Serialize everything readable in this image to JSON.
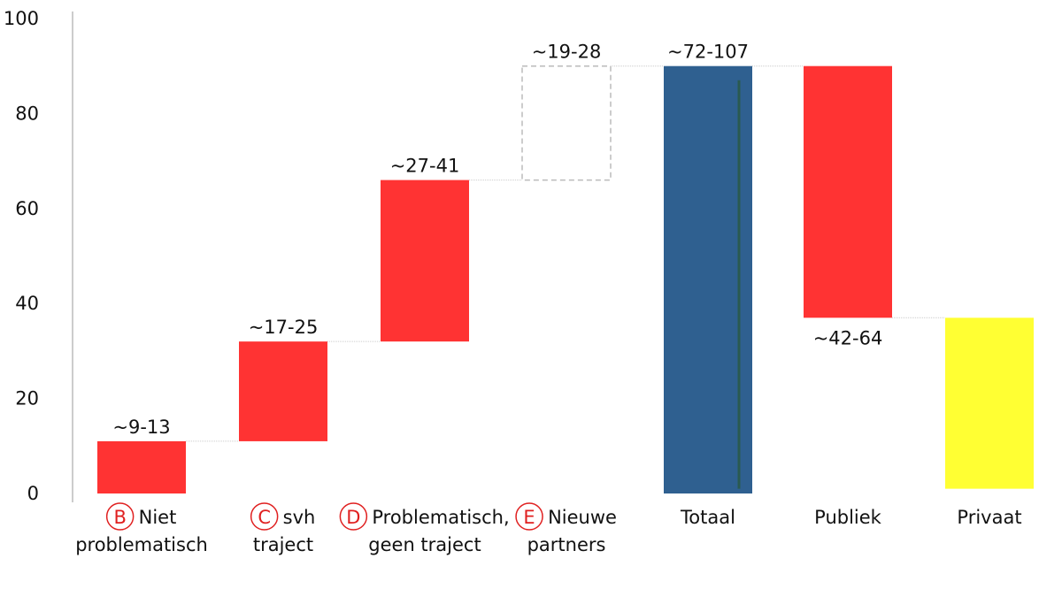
{
  "chart_data": {
    "type": "bar",
    "subtype": "waterfall",
    "ylim": [
      0,
      100
    ],
    "yticks": [
      0,
      20,
      40,
      60,
      80,
      100
    ],
    "grid": false,
    "categories": [
      {
        "badge": "B",
        "lines": [
          "Niet",
          "problematisch"
        ]
      },
      {
        "badge": "C",
        "lines": [
          "svh",
          "traject"
        ]
      },
      {
        "badge": "D",
        "lines": [
          "Problematisch,",
          "geen traject"
        ]
      },
      {
        "badge": "E",
        "lines": [
          "Nieuwe",
          "partners"
        ]
      },
      {
        "badge": "",
        "lines": [
          "Totaal"
        ]
      },
      {
        "badge": "",
        "lines": [
          "Publiek"
        ]
      },
      {
        "badge": "",
        "lines": [
          "Privaat"
        ]
      }
    ],
    "bars": [
      {
        "start": 0,
        "end": 11,
        "label": "~9-13",
        "color": "#ff3333",
        "style": "solid",
        "label_pos": "above"
      },
      {
        "start": 11,
        "end": 32,
        "label": "~17-25",
        "color": "#ff3333",
        "style": "solid",
        "label_pos": "above"
      },
      {
        "start": 32,
        "end": 66,
        "label": "~27-41",
        "color": "#ff3333",
        "style": "solid",
        "label_pos": "above"
      },
      {
        "start": 66,
        "end": 90,
        "label": "~19-28",
        "color": "#bbbbbb",
        "style": "dashed",
        "label_pos": "above"
      },
      {
        "start": 0,
        "end": 90,
        "label": "~72-107",
        "color": "#2f6090",
        "style": "solid",
        "label_pos": "above"
      },
      {
        "start": 37,
        "end": 90,
        "label": "~42-64",
        "color": "#ff3333",
        "style": "solid",
        "label_pos": "below"
      },
      {
        "start": 1,
        "end": 37,
        "label": "",
        "color": "#ffff33",
        "style": "solid",
        "label_pos": "none"
      }
    ],
    "connector_color": "#cccccc",
    "badge_color": "#e02020"
  }
}
